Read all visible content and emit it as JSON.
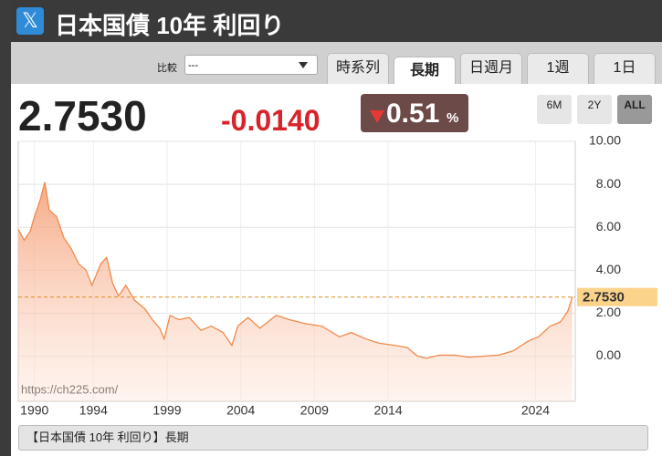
{
  "header": {
    "title": "日本国債 10年 利回り"
  },
  "controls": {
    "compare_label": "比較",
    "compare_value": "---",
    "tabs": [
      "時系列",
      "長期",
      "日週月",
      "1週",
      "1日"
    ],
    "active_tab": 1,
    "ranges": [
      "6M",
      "2Y",
      "ALL"
    ],
    "active_range": 2
  },
  "quote": {
    "change": "-0.0140",
    "percent": "0.51",
    "percent_unit": "%"
  },
  "footer": {
    "caption": "【日本国債 10年 利回り】長期"
  },
  "chart_data": {
    "type": "area",
    "watermark": "https://ch225.com/",
    "current": {
      "value": 2.753,
      "label": "2.7530"
    },
    "xlim": [
      1988.9,
      2026.7
    ],
    "xticks": [
      1990,
      1994,
      1999,
      2004,
      2009,
      2014,
      2024
    ],
    "ylim": [
      -2.1,
      10
    ],
    "yticks": [
      {
        "value": 0,
        "label": "0.00"
      },
      {
        "value": 2,
        "label": "2.00"
      },
      {
        "value": 4,
        "label": "4.00"
      },
      {
        "value": 6,
        "label": "6.00"
      },
      {
        "value": 8,
        "label": "8.00"
      },
      {
        "value": 10,
        "label": "10.00"
      }
    ],
    "grid": true,
    "series": [
      {
        "color": "#f08a4b",
        "x": [
          1988.9,
          1989.3,
          1989.7,
          1990.0,
          1990.4,
          1990.7,
          1991.0,
          1991.5,
          1992.0,
          1992.5,
          1993.0,
          1993.5,
          1993.9,
          1994.5,
          1994.9,
          1995.3,
          1995.7,
          1996.2,
          1996.8,
          1997.5,
          1998.0,
          1998.5,
          1998.8,
          1999.2,
          1999.8,
          2000.5,
          2001.3,
          2002.0,
          2002.8,
          2003.4,
          2003.8,
          2004.5,
          2005.3,
          2006.4,
          2007.3,
          2008.5,
          2009.5,
          2010.7,
          2011.5,
          2012.5,
          2013.4,
          2014.5,
          2015.3,
          2016.0,
          2016.6,
          2017.5,
          2018.5,
          2019.5,
          2020.5,
          2021.5,
          2022.5,
          2023.5,
          2024.2,
          2025.0,
          2025.7,
          2026.2,
          2026.5
        ],
        "values": [
          5.9,
          5.4,
          5.8,
          6.5,
          7.3,
          8.1,
          6.8,
          6.5,
          5.5,
          5.0,
          4.3,
          4.0,
          3.3,
          4.3,
          4.6,
          3.4,
          2.8,
          3.3,
          2.6,
          2.2,
          1.7,
          1.3,
          0.8,
          1.9,
          1.7,
          1.8,
          1.2,
          1.4,
          1.1,
          0.5,
          1.4,
          1.8,
          1.3,
          1.9,
          1.7,
          1.5,
          1.4,
          0.9,
          1.1,
          0.8,
          0.6,
          0.5,
          0.4,
          0.0,
          -0.1,
          0.05,
          0.05,
          -0.05,
          0.0,
          0.05,
          0.25,
          0.7,
          0.9,
          1.4,
          1.6,
          2.1,
          2.753
        ]
      }
    ]
  }
}
